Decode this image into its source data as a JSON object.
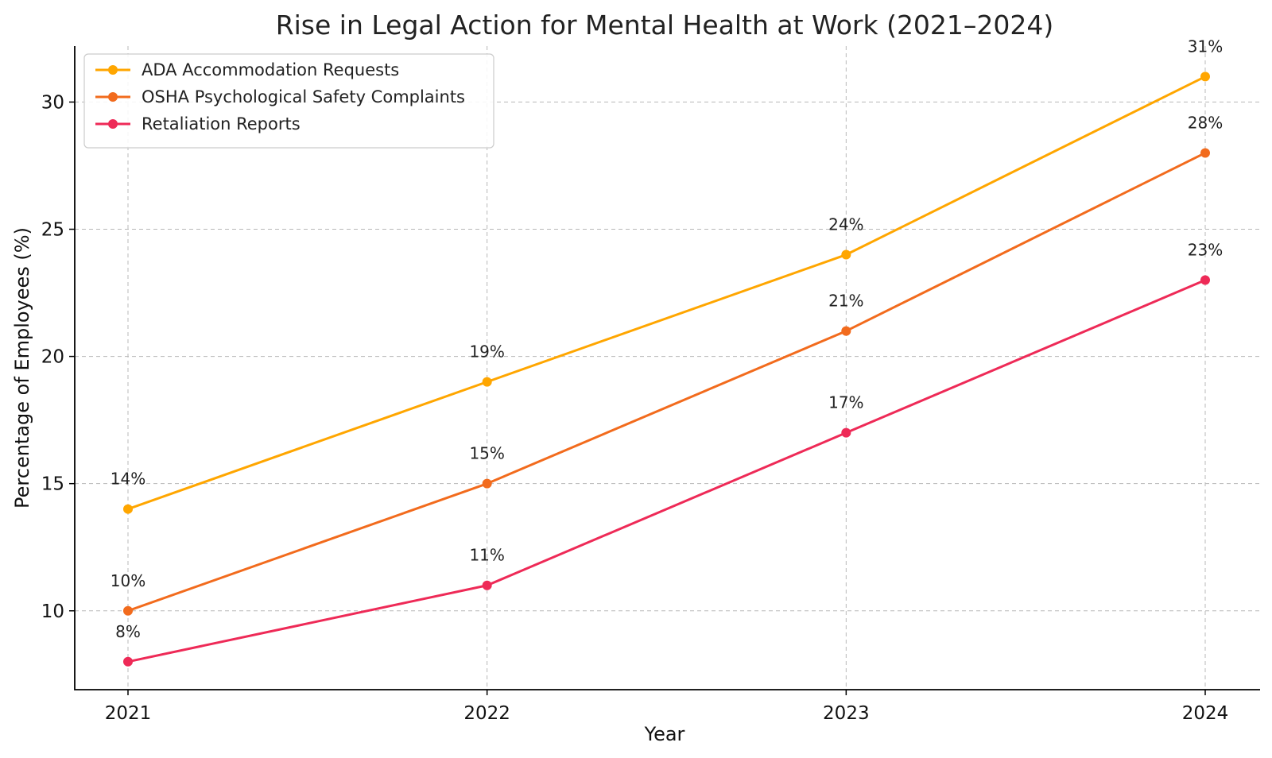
{
  "chart_data": {
    "type": "line",
    "title": "Rise in Legal Action for Mental Health at Work (2021–2024)",
    "xlabel": "Year",
    "ylabel": "Percentage of Employees (%)",
    "categories": [
      "2021",
      "2022",
      "2023",
      "2024"
    ],
    "ylim": [
      6.9,
      32.2
    ],
    "yticks": [
      10,
      15,
      20,
      25,
      30
    ],
    "grid": true,
    "legend_position": "top-left",
    "series": [
      {
        "name": "ADA Accommodation Requests",
        "values": [
          14,
          19,
          24,
          31
        ],
        "labels": [
          "14%",
          "19%",
          "24%",
          "31%"
        ],
        "color": "#FFA600"
      },
      {
        "name": "OSHA Psychological Safety Complaints",
        "values": [
          10,
          15,
          21,
          28
        ],
        "labels": [
          "10%",
          "15%",
          "21%",
          "28%"
        ],
        "color": "#F26B1D"
      },
      {
        "name": "Retaliation Reports",
        "values": [
          8,
          11,
          17,
          23
        ],
        "labels": [
          "8%",
          "11%",
          "17%",
          "23%"
        ],
        "color": "#EE2A57"
      }
    ]
  }
}
